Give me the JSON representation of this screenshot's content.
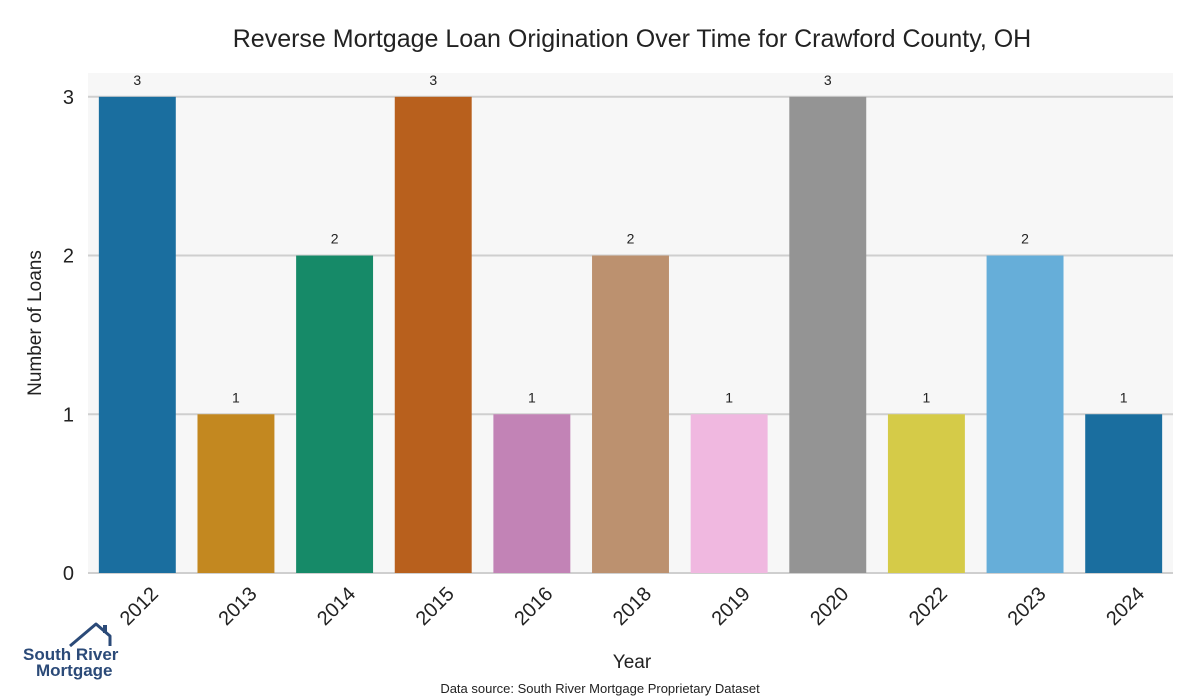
{
  "chart_data": {
    "type": "bar",
    "title": "Reverse Mortgage Loan Origination Over Time for Crawford County, OH",
    "xlabel": "Year",
    "ylabel": "Number of Loans",
    "categories": [
      "2012",
      "2013",
      "2014",
      "2015",
      "2016",
      "2018",
      "2019",
      "2020",
      "2022",
      "2023",
      "2024"
    ],
    "values": [
      3,
      1,
      2,
      3,
      1,
      2,
      1,
      3,
      1,
      2,
      1
    ],
    "colors": [
      "#1a6e9f",
      "#c38820",
      "#168a68",
      "#b8601d",
      "#c283b6",
      "#bc916f",
      "#f0b8e0",
      "#949494",
      "#d5cb48",
      "#66aed9",
      "#1a6e9f"
    ],
    "ylim": [
      0,
      3.15
    ],
    "yticks": [
      0,
      1,
      2,
      3
    ],
    "grid": true,
    "background": "#f7f7f7"
  },
  "footer": {
    "source": "Data source: South River Mortgage Proprietary Dataset"
  },
  "logo": {
    "line1": "South River",
    "line2": "Mortgage",
    "icon": "house-roof-icon"
  }
}
